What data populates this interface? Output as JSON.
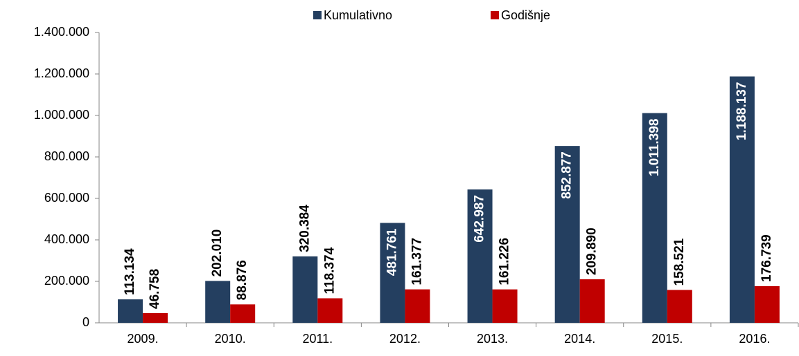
{
  "chart_data": {
    "type": "bar",
    "categories": [
      "2009.",
      "2010.",
      "2011.",
      "2012.",
      "2013.",
      "2014.",
      "2015.",
      "2016."
    ],
    "series": [
      {
        "name": "Kumulativno",
        "color": "#243f60",
        "values": [
          113134,
          202010,
          320384,
          481761,
          642987,
          852877,
          1011398,
          1188137
        ],
        "value_labels": [
          "113.134",
          "202.010",
          "320.384",
          "481.761",
          "642.987",
          "852.877",
          "1.011.398",
          "1.188.137"
        ]
      },
      {
        "name": "Godišnje",
        "color": "#c00000",
        "values": [
          46758,
          88876,
          118374,
          161377,
          161226,
          209890,
          158521,
          176739
        ],
        "value_labels": [
          "46.758",
          "88.876",
          "118.374",
          "161.377",
          "161.226",
          "209.890",
          "158.521",
          "176.739"
        ]
      }
    ],
    "ylim": [
      0,
      1400000
    ],
    "yticks": [
      0,
      {
        "value": 200000,
        "label": "200.000"
      },
      {
        "value": 400000,
        "label": "400.000"
      },
      {
        "value": 600000,
        "label": "600.000"
      },
      {
        "value": 800000,
        "label": "800.000"
      },
      {
        "value": 1000000,
        "label": "1.000.000"
      },
      {
        "value": 1200000,
        "label": "1.200.000"
      },
      {
        "value": 1400000,
        "label": "1.400.000"
      }
    ],
    "legend": "top"
  }
}
